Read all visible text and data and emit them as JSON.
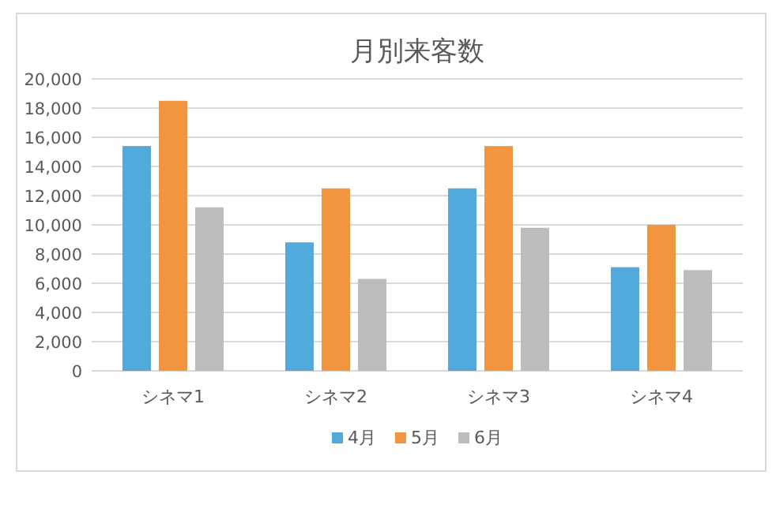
{
  "chart_data": {
    "type": "bar",
    "title": "月別来客数",
    "categories": [
      "シネマ1",
      "シネマ2",
      "シネマ3",
      "シネマ4"
    ],
    "series": [
      {
        "name": "4月",
        "color": "#52a9dc",
        "values": [
          15400,
          8800,
          12500,
          7100
        ]
      },
      {
        "name": "5月",
        "color": "#f2953f",
        "values": [
          18500,
          12500,
          15400,
          10000
        ]
      },
      {
        "name": "6月",
        "color": "#bcbcbc",
        "values": [
          11200,
          6300,
          9800,
          6900
        ]
      }
    ],
    "ylim": [
      0,
      20000
    ],
    "yticks": [
      {
        "value": 0,
        "label": "0"
      },
      {
        "value": 2000,
        "label": "2,000"
      },
      {
        "value": 4000,
        "label": "4,000"
      },
      {
        "value": 6000,
        "label": "6,000"
      },
      {
        "value": 8000,
        "label": "8,000"
      },
      {
        "value": 10000,
        "label": "10,000"
      },
      {
        "value": 12000,
        "label": "12,000"
      },
      {
        "value": 14000,
        "label": "14,000"
      },
      {
        "value": 16000,
        "label": "16,000"
      },
      {
        "value": 18000,
        "label": "18,000"
      },
      {
        "value": 20000,
        "label": "20,000"
      }
    ],
    "grid": "y",
    "legend": "bottom"
  }
}
